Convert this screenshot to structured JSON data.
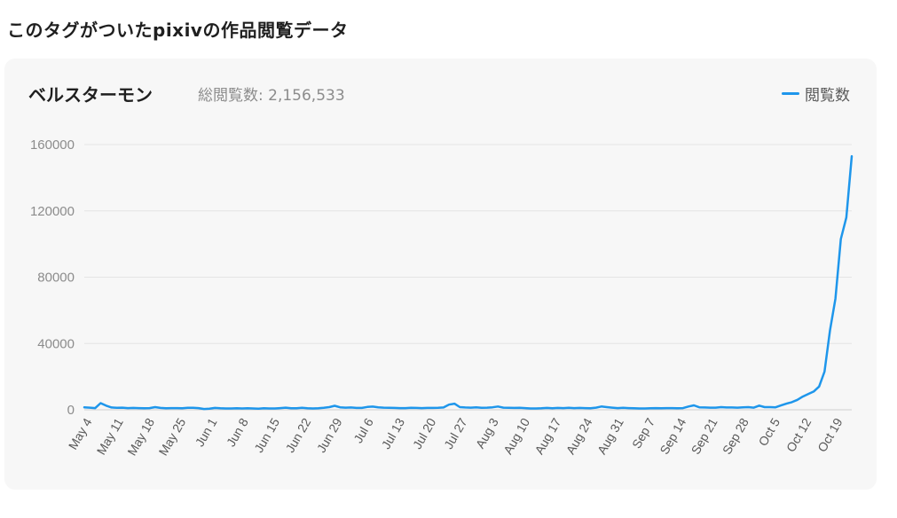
{
  "page": {
    "heading": "このタグがついたpixivの作品閲覧データ"
  },
  "card": {
    "title": "ベルスターモン",
    "total": "総閲覧数: 2,156,533",
    "legend_label": "閲覧数",
    "line_color": "#1e96eb"
  },
  "chart_data": {
    "type": "line",
    "title": "ベルスターモン",
    "subtitle": "総閲覧数: 2,156,533",
    "xlabel": "",
    "ylabel": "",
    "ylim": [
      0,
      160000
    ],
    "yticks": [
      0,
      40000,
      80000,
      120000,
      160000
    ],
    "grid": true,
    "legend_position": "top-right",
    "x_tick_labels": [
      "May 4",
      "May 11",
      "May 18",
      "May 25",
      "Jun 1",
      "Jun 8",
      "Jun 15",
      "Jun 22",
      "Jun 29",
      "Jul 6",
      "Jul 13",
      "Jul 20",
      "Jul 27",
      "Aug 3",
      "Aug 10",
      "Aug 17",
      "Aug 24",
      "Aug 31",
      "Sep 7",
      "Sep 14",
      "Sep 21",
      "Sep 28",
      "Oct 5",
      "Oct 12",
      "Oct 19"
    ],
    "series": [
      {
        "name": "閲覧数",
        "values": [
          1500,
          1300,
          1000,
          4000,
          2500,
          1400,
          1200,
          1300,
          1000,
          1100,
          1000,
          900,
          1000,
          1600,
          1100,
          900,
          1000,
          1000,
          900,
          1200,
          1200,
          1000,
          500,
          700,
          1100,
          900,
          800,
          800,
          900,
          800,
          900,
          800,
          700,
          900,
          800,
          800,
          1000,
          1300,
          900,
          900,
          1200,
          900,
          800,
          900,
          1200,
          1600,
          2400,
          1500,
          1300,
          1400,
          1100,
          1100,
          1700,
          1900,
          1500,
          1300,
          1200,
          1100,
          1000,
          1000,
          1200,
          1100,
          1000,
          1100,
          1100,
          1200,
          1400,
          3100,
          3700,
          1600,
          1400,
          1300,
          1500,
          1200,
          1300,
          1500,
          2000,
          1300,
          1200,
          1100,
          1200,
          1000,
          800,
          800,
          900,
          1100,
          900,
          1100,
          1000,
          1200,
          1000,
          1100,
          1000,
          900,
          1300,
          2000,
          1600,
          1300,
          1000,
          1200,
          1000,
          900,
          800,
          800,
          900,
          1000,
          900,
          1000,
          1000,
          900,
          1000,
          2000,
          2700,
          1500,
          1400,
          1300,
          1300,
          1600,
          1400,
          1400,
          1300,
          1500,
          1600,
          1300,
          2500,
          1600,
          1600,
          1500,
          2600,
          3700,
          4600,
          6000,
          8000,
          9500,
          11000,
          14000,
          23000,
          48000,
          67000,
          103000,
          116000,
          153000
        ]
      }
    ]
  }
}
